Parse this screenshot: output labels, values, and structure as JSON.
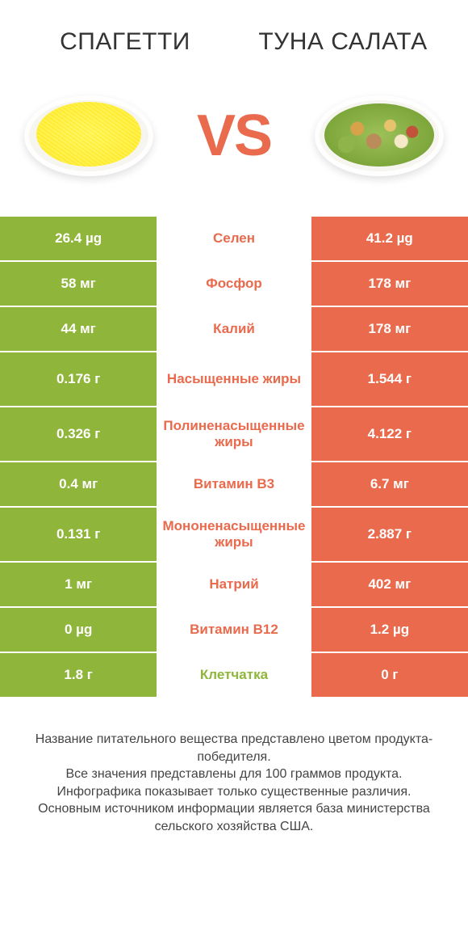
{
  "left_title": "СПАГЕТТИ",
  "right_title": "ТУНА САЛАТА",
  "vs_label": "VS",
  "colors": {
    "left": "#8fb53a",
    "right": "#e96a4c",
    "mid_text_left_win": "#8fb53a",
    "mid_text_right_win": "#e96a4c",
    "background": "#ffffff"
  },
  "rows": [
    {
      "label": "Селен",
      "left": "26.4 µg",
      "right": "41.2 µg",
      "winner": "right",
      "tall": false
    },
    {
      "label": "Фосфор",
      "left": "58 мг",
      "right": "178 мг",
      "winner": "right",
      "tall": false
    },
    {
      "label": "Калий",
      "left": "44 мг",
      "right": "178 мг",
      "winner": "right",
      "tall": false
    },
    {
      "label": "Насыщенные жиры",
      "left": "0.176 г",
      "right": "1.544 г",
      "winner": "right",
      "tall": true
    },
    {
      "label": "Полиненасыщенные жиры",
      "left": "0.326 г",
      "right": "4.122 г",
      "winner": "right",
      "tall": true
    },
    {
      "label": "Витамин B3",
      "left": "0.4 мг",
      "right": "6.7 мг",
      "winner": "right",
      "tall": false
    },
    {
      "label": "Мононенасыщенные жиры",
      "left": "0.131 г",
      "right": "2.887 г",
      "winner": "right",
      "tall": true
    },
    {
      "label": "Натрий",
      "left": "1 мг",
      "right": "402 мг",
      "winner": "right",
      "tall": false
    },
    {
      "label": "Витамин B12",
      "left": "0 µg",
      "right": "1.2 µg",
      "winner": "right",
      "tall": false
    },
    {
      "label": "Клетчатка",
      "left": "1.8 г",
      "right": "0 г",
      "winner": "left",
      "tall": false
    }
  ],
  "footnotes": [
    "Название питательного вещества представлено цветом продукта-победителя.",
    "Все значения представлены для 100 граммов продукта.",
    "Инфографика показывает только существенные различия.",
    "Основным источником информации является база министерства сельского хозяйства США."
  ]
}
